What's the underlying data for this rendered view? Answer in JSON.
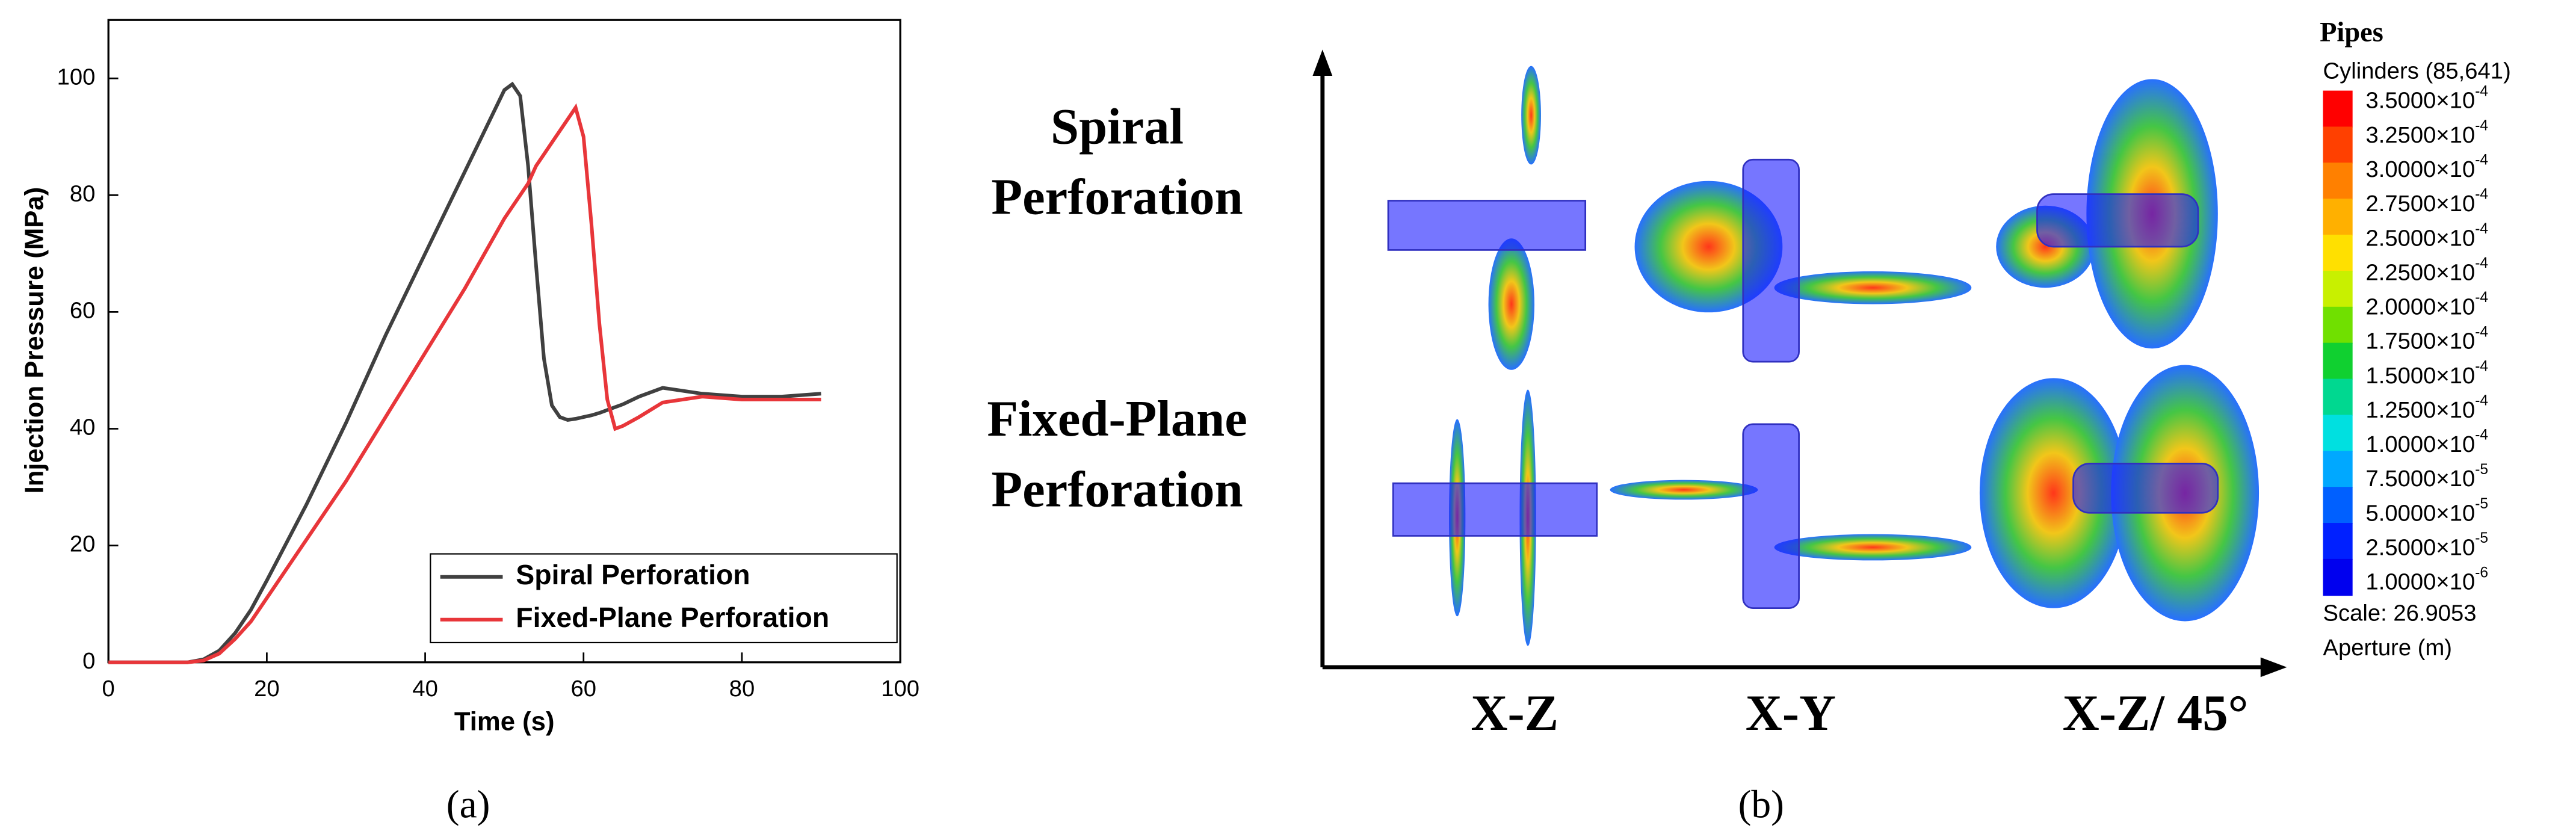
{
  "chart_data": {
    "type": "line",
    "x_label": "Time (s)",
    "y_label": "Injection Pressure (MPa)",
    "x": [
      0,
      10,
      12,
      14,
      16,
      18,
      20,
      25,
      30,
      35,
      40,
      45,
      50,
      51,
      52,
      53,
      54,
      55,
      56,
      57,
      58,
      59,
      60,
      61,
      62,
      63,
      64,
      65,
      67,
      70,
      75,
      80,
      85,
      90
    ],
    "series": [
      {
        "name": "Spiral Perforation",
        "color": "#404040",
        "values": [
          0,
          0,
          0.5,
          2,
          5,
          9,
          14,
          27,
          41,
          56,
          70,
          84,
          98,
          99,
          97,
          85,
          68,
          52,
          44,
          42,
          41.5,
          41.7,
          42,
          42.3,
          42.7,
          43.2,
          43.7,
          44.2,
          45.5,
          47,
          46,
          45.5,
          45.5,
          46
        ]
      },
      {
        "name": "Fixed-Plane Perforation",
        "color": "#e8363a",
        "values": [
          0,
          0,
          0.3,
          1.5,
          4,
          7,
          11,
          21,
          31,
          42,
          53,
          64,
          76,
          78,
          80,
          82,
          85,
          87,
          89,
          91,
          93,
          95,
          90,
          75,
          58,
          45,
          40,
          40.5,
          42,
          44.5,
          45.5,
          45,
          45,
          45
        ]
      }
    ],
    "xlim": [
      0,
      100
    ],
    "xticks": [
      0,
      20,
      40,
      60,
      80,
      100
    ],
    "ylim": [
      0,
      110
    ],
    "yticks": [
      0,
      20,
      40,
      60,
      80,
      100
    ],
    "legend": "lower right",
    "caption": "(a)"
  },
  "panel_b": {
    "row_labels": [
      [
        "Spiral",
        "Perforation"
      ],
      [
        "Fixed-Plane",
        "Perforation"
      ]
    ],
    "column_labels": [
      "X-Z",
      "X-Y",
      "X-Z/ 45°"
    ],
    "legend_title": "Pipes",
    "legend_subtitle": "Cylinders (85,641)",
    "colorbar_labels": [
      {
        "base": "3.5000×10",
        "exp": "-4"
      },
      {
        "base": "3.2500×10",
        "exp": "-4"
      },
      {
        "base": "3.0000×10",
        "exp": "-4"
      },
      {
        "base": "2.7500×10",
        "exp": "-4"
      },
      {
        "base": "2.5000×10",
        "exp": "-4"
      },
      {
        "base": "2.2500×10",
        "exp": "-4"
      },
      {
        "base": "2.0000×10",
        "exp": "-4"
      },
      {
        "base": "1.7500×10",
        "exp": "-4"
      },
      {
        "base": "1.5000×10",
        "exp": "-4"
      },
      {
        "base": "1.2500×10",
        "exp": "-4"
      },
      {
        "base": "1.0000×10",
        "exp": "-4"
      },
      {
        "base": "7.5000×10",
        "exp": "-5"
      },
      {
        "base": "5.0000×10",
        "exp": "-5"
      },
      {
        "base": "2.5000×10",
        "exp": "-5"
      },
      {
        "base": "1.0000×10",
        "exp": "-6"
      }
    ],
    "colorbar_colors": [
      "#ff0000",
      "#ff4000",
      "#ff8000",
      "#ffb000",
      "#ffe000",
      "#c8f000",
      "#70e000",
      "#10d030",
      "#00d890",
      "#00e0e0",
      "#00a8ff",
      "#0060ff",
      "#0020ff",
      "#0000ee"
    ],
    "scale": "Scale: 26.9053",
    "unit": "Aperture (m)",
    "caption": "(b)"
  }
}
